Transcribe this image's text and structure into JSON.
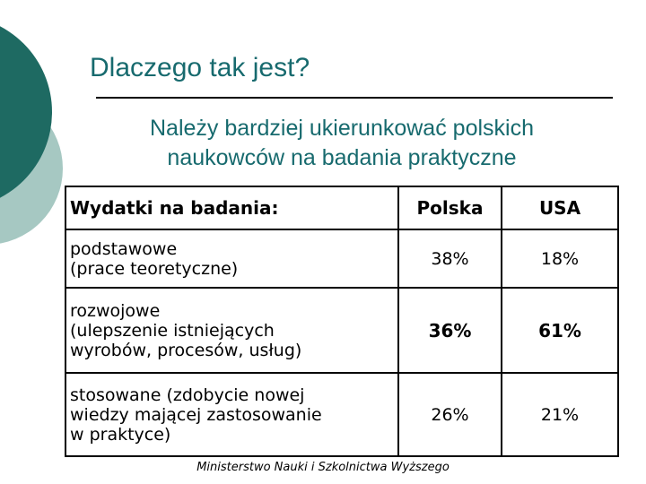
{
  "slide": {
    "title": "Dlaczego tak jest?",
    "subtitle": "Należy bardziej ukierunkować polskich\nnaukowców na badania praktyczne",
    "footer": "Ministerstwo Nauki i Szkolnictwa Wyższego"
  },
  "table": {
    "headers": [
      "Wydatki na badania:",
      "Polska",
      "USA"
    ],
    "rows": [
      {
        "label": "podstawowe\n(prace teoretyczne)",
        "polska": "38%",
        "usa": "18%",
        "emphasis": false
      },
      {
        "label": "rozwojowe\n(ulepszenie istniejących\nwyrobów, procesów, usług)",
        "polska": "36%",
        "usa": "61%",
        "emphasis": true
      },
      {
        "label": "stosowane (zdobycie nowej\nwiedzy mającej zastosowanie\nw praktyce)",
        "polska": "26%",
        "usa": "21%",
        "emphasis": false
      }
    ]
  },
  "colors": {
    "accent_teal_text": "#176a6e",
    "accent_teal_dark_circle": "#1e6a62",
    "accent_teal_light_circle": "#a6c8c2",
    "table_border": "#000000",
    "background": "#ffffff"
  },
  "chart_data": {
    "type": "table",
    "title": "Wydatki na badania:",
    "categories": [
      "podstawowe (prace teoretyczne)",
      "rozwojowe (ulepszenie istniejących wyrobów, procesów, usług)",
      "stosowane (zdobycie nowej wiedzy mającej zastosowanie w praktyce)"
    ],
    "series": [
      {
        "name": "Polska",
        "values": [
          38,
          36,
          26
        ]
      },
      {
        "name": "USA",
        "values": [
          18,
          61,
          21
        ]
      }
    ],
    "unit": "%"
  }
}
